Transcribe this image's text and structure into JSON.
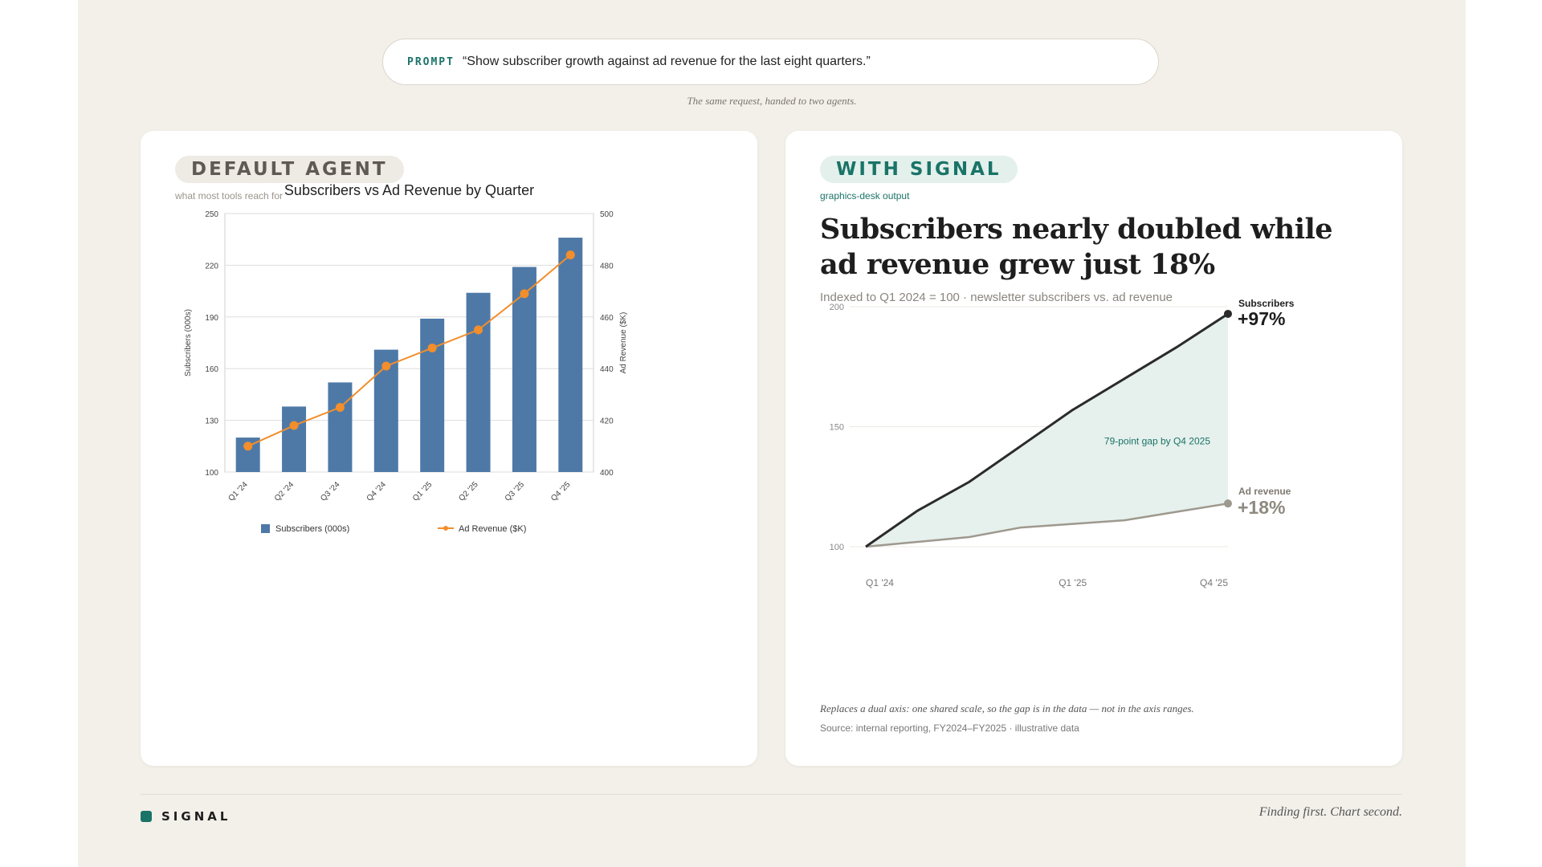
{
  "prompt": {
    "tag": "PROMPT",
    "text": "“Show subscriber growth against ad revenue for the last eight quarters.”",
    "caption": "The same request, handed to two agents."
  },
  "left_card": {
    "pill": "DEFAULT AGENT",
    "subtitle": "what most tools reach for"
  },
  "right_card": {
    "pill": "WITH SIGNAL",
    "subtitle": "graphics-desk output",
    "headline": "Subscribers nearly doubled while ad revenue grew just 18%",
    "dek": "Indexed to Q1 2024 = 100 · newsletter subscribers vs. ad revenue",
    "note": "Replaces a dual axis: one shared scale, so the gap is in the data — not in the axis ranges.",
    "source": "Source: internal reporting, FY2024–FY2025 · illustrative data"
  },
  "footer": {
    "brand": "SIGNAL",
    "tagline": "Finding first. Chart second."
  },
  "colors": {
    "bar": "#4e79a7",
    "revenue_line": "#f28e2b",
    "teal": "#1a7367",
    "subscribers_line": "#2b2b2b",
    "adrev_line": "#9e998f",
    "gap_fill": "#e6f0ec"
  },
  "chart_data": [
    {
      "type": "bar",
      "title": "Subscribers vs Ad Revenue by Quarter",
      "categories": [
        "Q1 '24",
        "Q2 '24",
        "Q3 '24",
        "Q4 '24",
        "Q1 '25",
        "Q2 '25",
        "Q3 '25",
        "Q4 '25"
      ],
      "series": [
        {
          "name": "Subscribers (000s)",
          "type": "bar",
          "axis": "left",
          "values": [
            120,
            138,
            152,
            171,
            189,
            204,
            219,
            236
          ]
        },
        {
          "name": "Ad Revenue ($K)",
          "type": "line",
          "axis": "right",
          "values": [
            410,
            418,
            425,
            441,
            448,
            455,
            469,
            484
          ]
        }
      ],
      "ylabel": "Subscribers (000s)",
      "ylabel_right": "Ad Revenue ($K)",
      "ylim": [
        100,
        250
      ],
      "ylim_right": [
        400,
        500
      ],
      "yticks": [
        100,
        130,
        160,
        190,
        220,
        250
      ],
      "yticks_right": [
        400,
        420,
        440,
        460,
        480,
        500
      ],
      "grid": true,
      "legend": "bottom"
    },
    {
      "type": "line",
      "x": [
        "Q1 '24",
        "Q2 '24",
        "Q3 '24",
        "Q4 '24",
        "Q1 '25",
        "Q2 '25",
        "Q3 '25",
        "Q4 '25"
      ],
      "x_tick_labels": [
        "Q1 '24",
        "Q1 '25",
        "Q4 '25"
      ],
      "series": [
        {
          "name": "Subscribers",
          "values": [
            100,
            115,
            127,
            142,
            157,
            170,
            183,
            197
          ],
          "end_label": "+97%"
        },
        {
          "name": "Ad revenue",
          "values": [
            100,
            102,
            104,
            108,
            109.5,
            111,
            114.5,
            118
          ],
          "end_label": "+18%"
        }
      ],
      "annotation": "79-point gap by Q4 2025",
      "ylim": [
        100,
        200
      ],
      "yticks": [
        100,
        150,
        200
      ],
      "grid": true,
      "legend": "none"
    }
  ]
}
